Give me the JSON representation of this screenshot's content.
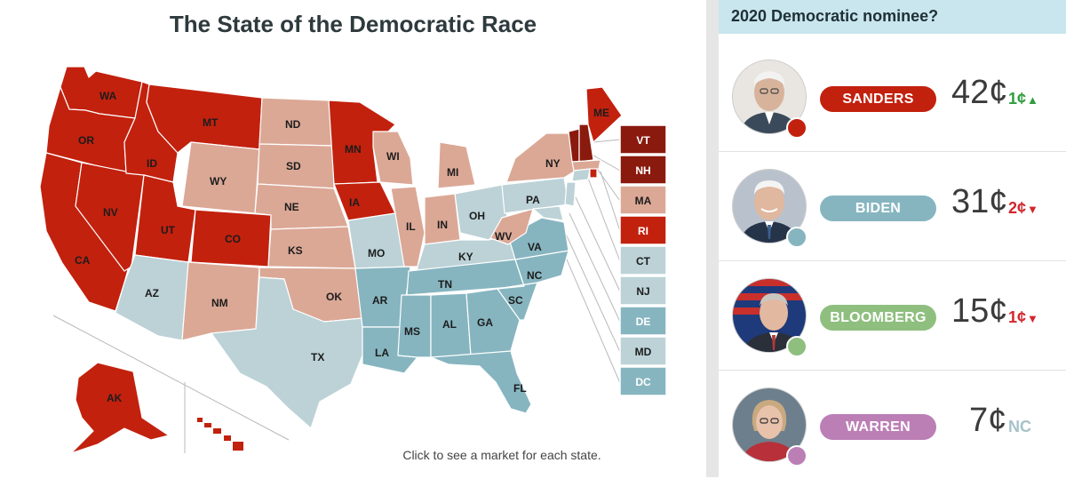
{
  "map": {
    "title": "The State of the Democratic Race",
    "footer": "Click to see a market for each state.",
    "colors": {
      "sanders": "#c2210e",
      "sanders_dark": "#8a1a0e",
      "sanders_light": "#dba896",
      "biden": "#86b5c0",
      "biden_light": "#bcd2d7"
    },
    "states": {
      "WA": "WA",
      "OR": "OR",
      "CA": "CA",
      "NV": "NV",
      "ID": "ID",
      "MT": "MT",
      "WY": "WY",
      "UT": "UT",
      "CO": "CO",
      "AZ": "AZ",
      "NM": "NM",
      "ND": "ND",
      "SD": "SD",
      "NE": "NE",
      "KS": "KS",
      "OK": "OK",
      "TX": "TX",
      "MN": "MN",
      "IA": "IA",
      "MO": "MO",
      "AR": "AR",
      "LA": "LA",
      "WI": "WI",
      "IL": "IL",
      "MI": "MI",
      "IN": "IN",
      "OH": "OH",
      "KY": "KY",
      "TN": "TN",
      "MS": "MS",
      "AL": "AL",
      "GA": "GA",
      "FL": "FL",
      "SC": "SC",
      "NC": "NC",
      "VA": "VA",
      "WV": "WV",
      "PA": "PA",
      "NY": "NY",
      "ME": "ME",
      "AK": "AK"
    },
    "small_states": [
      {
        "label": "VT",
        "color": "#8a1a0e"
      },
      {
        "label": "NH",
        "color": "#8a1a0e"
      },
      {
        "label": "MA",
        "color": "#dba896"
      },
      {
        "label": "RI",
        "color": "#c2210e"
      },
      {
        "label": "CT",
        "color": "#bcd2d7"
      },
      {
        "label": "NJ",
        "color": "#bcd2d7"
      },
      {
        "label": "DE",
        "color": "#86b5c0"
      },
      {
        "label": "MD",
        "color": "#bcd2d7"
      },
      {
        "label": "DC",
        "color": "#86b5c0"
      }
    ]
  },
  "sidebar": {
    "title": "2020 Democratic nominee?",
    "candidates": [
      {
        "name": "SANDERS",
        "price": "42¢",
        "change": "1¢",
        "direction": "up",
        "pill_color": "#c2210e",
        "change_color": "#2e9d3c",
        "arrow": "▲"
      },
      {
        "name": "BIDEN",
        "price": "31¢",
        "change": "2¢",
        "direction": "down",
        "pill_color": "#86b5c0",
        "change_color": "#d2262d",
        "arrow": "▼"
      },
      {
        "name": "BLOOMBERG",
        "price": "15¢",
        "change": "1¢",
        "direction": "down",
        "pill_color": "#8fbf7f",
        "change_color": "#d2262d",
        "arrow": "▼"
      },
      {
        "name": "WARREN",
        "price": "7¢",
        "change": "NC",
        "direction": "none",
        "pill_color": "#bb7fb6",
        "change_color": "#a6c2ca",
        "arrow": ""
      }
    ]
  }
}
